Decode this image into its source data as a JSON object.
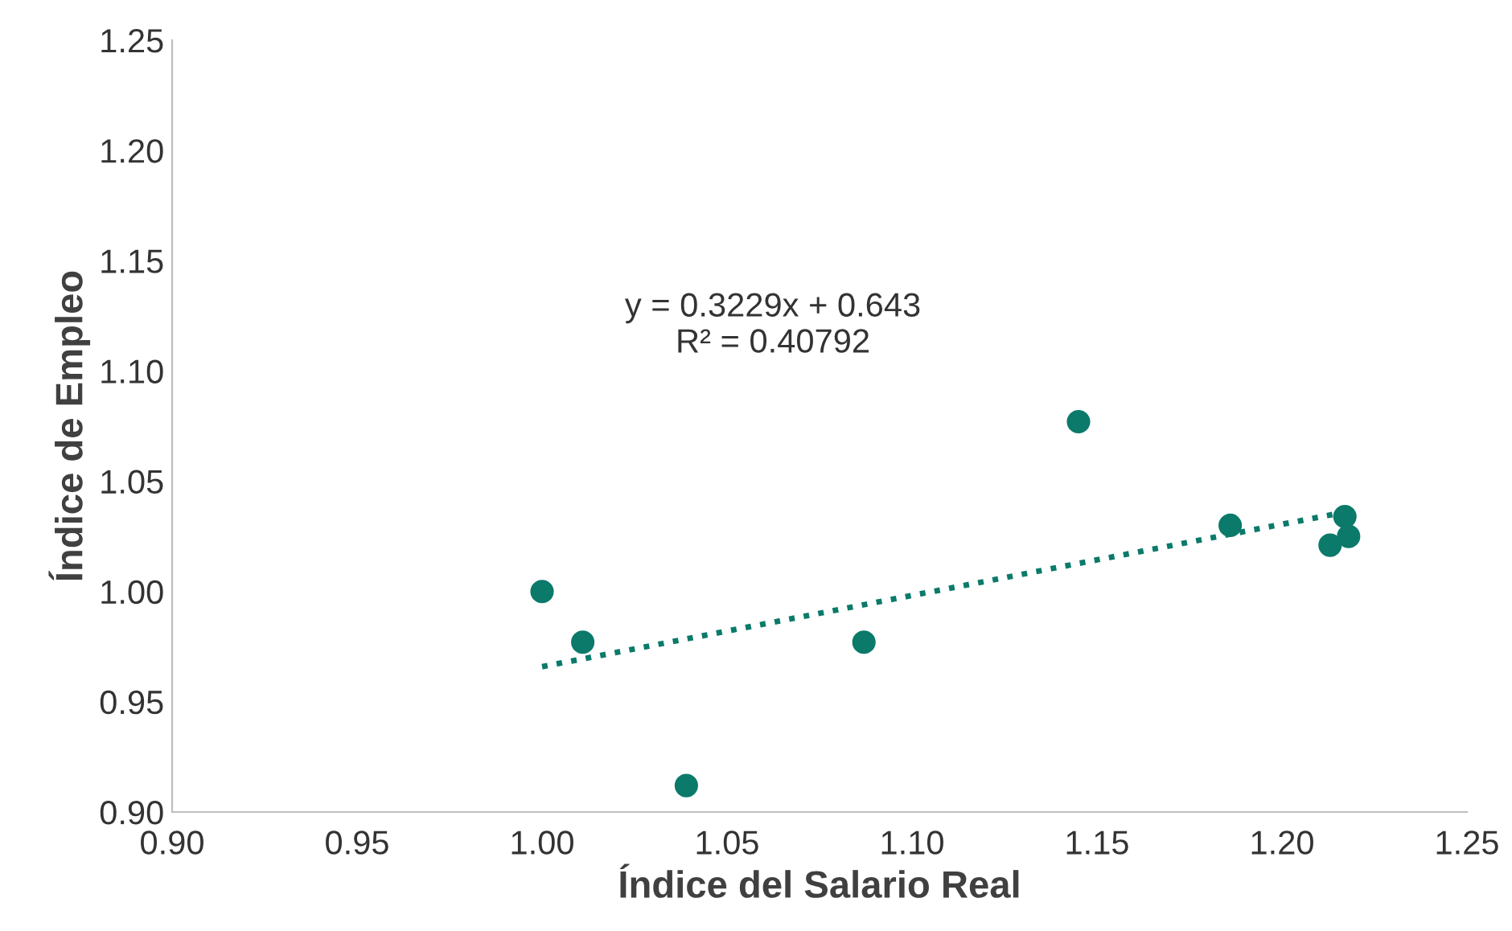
{
  "chart_data": {
    "type": "scatter",
    "xlabel": "Índice del Salario Real",
    "ylabel": "Índice de Empleo",
    "series": [
      {
        "type": "scatter",
        "color": "#0b7a6a",
        "marker": "circle",
        "x": [
          1.0,
          1.011,
          1.039,
          1.087,
          1.145,
          1.186,
          1.213,
          1.217,
          1.218
        ],
        "values": [
          1.0,
          0.977,
          0.912,
          0.977,
          1.077,
          1.03,
          1.021,
          1.034,
          1.025
        ]
      },
      {
        "type": "line",
        "color": "#0b7a6a",
        "marker": "none",
        "line_style": "dotted",
        "x": [
          1.0,
          1.218
        ],
        "values": [
          0.9659,
          1.0363
        ]
      }
    ],
    "annotations": [
      "y = 0.3229x + 0.643\nR² = 0.40792"
    ],
    "xlim": [
      0.9,
      1.25
    ],
    "ylim": [
      0.9,
      1.25
    ],
    "xticks": [
      {
        "value": 0.9,
        "label": "0.90"
      },
      {
        "value": 0.95,
        "label": "0.95"
      },
      {
        "value": 1.0,
        "label": "1.00"
      },
      {
        "value": 1.05,
        "label": "1.05"
      },
      {
        "value": 1.1,
        "label": "1.10"
      },
      {
        "value": 1.15,
        "label": "1.15"
      },
      {
        "value": 1.2,
        "label": "1.20"
      },
      {
        "value": 1.25,
        "label": "1.25"
      }
    ],
    "yticks": [
      {
        "value": 0.9,
        "label": "0.90"
      },
      {
        "value": 0.95,
        "label": "0.95"
      },
      {
        "value": 1.0,
        "label": "1.00"
      },
      {
        "value": 1.05,
        "label": "1.05"
      },
      {
        "value": 1.1,
        "label": "1.10"
      },
      {
        "value": 1.15,
        "label": "1.15"
      },
      {
        "value": 1.2,
        "label": "1.20"
      },
      {
        "value": 1.25,
        "label": "1.25"
      }
    ],
    "grid": false,
    "legend": false
  }
}
